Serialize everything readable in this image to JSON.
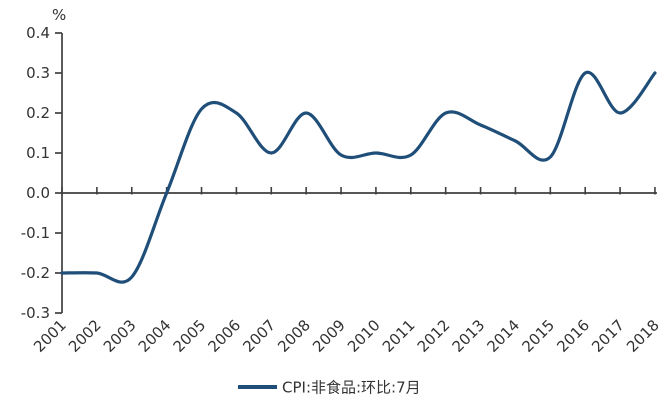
{
  "chart_data": {
    "type": "line",
    "title": "",
    "unit_label": "%",
    "categories": [
      "2001",
      "2002",
      "2003",
      "2004",
      "2005",
      "2006",
      "2007",
      "2008",
      "2009",
      "2010",
      "2011",
      "2012",
      "2013",
      "2014",
      "2015",
      "2016",
      "2017",
      "2018"
    ],
    "series": [
      {
        "name": "CPI:非食品:环比:7月",
        "color": "#1F4E79",
        "values": [
          -0.2,
          -0.2,
          -0.21,
          0.0,
          0.21,
          0.2,
          0.1,
          0.2,
          0.095,
          0.1,
          0.095,
          0.2,
          0.17,
          0.13,
          0.09,
          0.3,
          0.2,
          0.3
        ]
      }
    ],
    "ylim": [
      -0.3,
      0.4
    ],
    "ytick_step": 0.1,
    "ytick_labels": [
      "0.4",
      "0.3",
      "0.2",
      "0.1",
      "0.0",
      "-0.1",
      "-0.2",
      "-0.3"
    ],
    "grid": false,
    "smooth": true,
    "legend_position": "bottom"
  },
  "style": {
    "line_color": "#1F4E79",
    "axis_color": "#3f3f3f",
    "text_color": "#333333",
    "background": "#ffffff"
  }
}
